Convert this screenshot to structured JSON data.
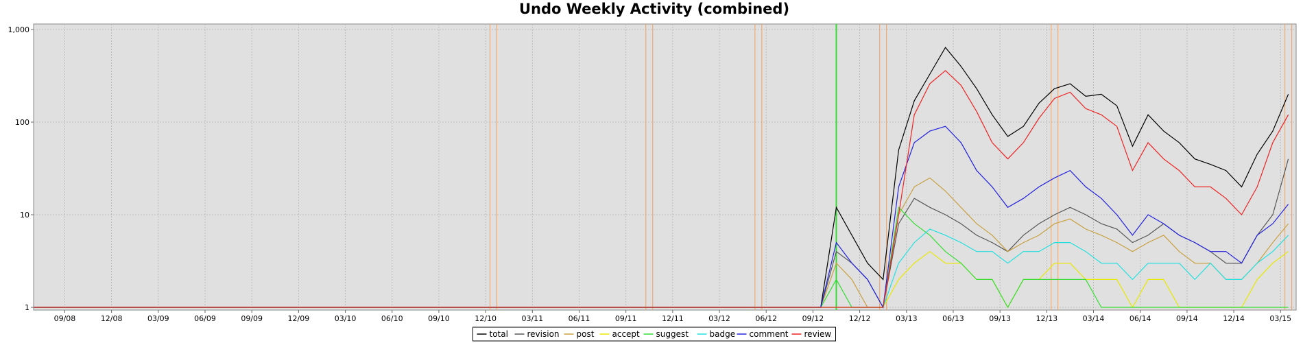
{
  "chart_data": {
    "type": "line",
    "title": "Undo Weekly Activity (combined)",
    "xlabel": "",
    "ylabel": "",
    "yscale": "log",
    "ylim": [
      1,
      1000
    ],
    "grid": true,
    "legend_position": "bottom",
    "y_ticks": [
      {
        "value": 1,
        "label": "1"
      },
      {
        "value": 10,
        "label": "10"
      },
      {
        "value": 100,
        "label": "100"
      },
      {
        "value": 1000,
        "label": "1,000"
      }
    ],
    "x_ticks": [
      "09/08",
      "12/08",
      "03/09",
      "06/09",
      "09/09",
      "12/09",
      "03/10",
      "06/10",
      "09/10",
      "12/10",
      "03/11",
      "06/11",
      "09/11",
      "12/11",
      "03/12",
      "06/12",
      "09/12",
      "12/12",
      "03/13",
      "06/13",
      "09/13",
      "12/13",
      "03/14",
      "06/14",
      "09/14",
      "12/14",
      "03/15"
    ],
    "x": [
      "2012-09",
      "2012-10",
      "2012-11",
      "2012-12",
      "2013-01",
      "2013-02",
      "2013-03",
      "2013-04",
      "2013-05",
      "2013-06",
      "2013-07",
      "2013-08",
      "2013-09",
      "2013-10",
      "2013-11",
      "2013-12",
      "2014-01",
      "2014-02",
      "2014-03",
      "2014-04",
      "2014-05",
      "2014-06",
      "2014-07",
      "2014-08",
      "2014-09",
      "2014-10",
      "2014-11",
      "2014-12",
      "2015-01",
      "2015-02",
      "2015-03"
    ],
    "series": [
      {
        "name": "total",
        "color": "#000000",
        "values": [
          1,
          12,
          6,
          3,
          2,
          50,
          170,
          330,
          640,
          400,
          230,
          120,
          70,
          90,
          160,
          230,
          260,
          190,
          200,
          150,
          55,
          120,
          80,
          60,
          40,
          35,
          30,
          20,
          45,
          80,
          200
        ]
      },
      {
        "name": "revision",
        "color": "#555555",
        "values": [
          1,
          4,
          3,
          2,
          1,
          8,
          15,
          12,
          10,
          8,
          6,
          5,
          4,
          6,
          8,
          10,
          12,
          10,
          8,
          7,
          5,
          6,
          8,
          6,
          5,
          4,
          3,
          3,
          6,
          10,
          40
        ]
      },
      {
        "name": "post",
        "color": "#c8a040",
        "values": [
          1,
          3,
          2,
          1,
          1,
          10,
          20,
          25,
          18,
          12,
          8,
          6,
          4,
          5,
          6,
          8,
          9,
          7,
          6,
          5,
          4,
          5,
          6,
          4,
          3,
          3,
          2,
          2,
          3,
          5,
          8
        ]
      },
      {
        "name": "accept",
        "color": "#e8e800",
        "values": [
          1,
          1,
          1,
          1,
          1,
          2,
          3,
          4,
          3,
          3,
          2,
          2,
          1,
          2,
          2,
          3,
          3,
          2,
          2,
          2,
          1,
          2,
          2,
          1,
          1,
          1,
          1,
          1,
          2,
          3,
          4
        ]
      },
      {
        "name": "suggest",
        "color": "#33dd33",
        "values": [
          1,
          2,
          1,
          1,
          1,
          12,
          8,
          6,
          4,
          3,
          2,
          2,
          1,
          2,
          2,
          2,
          2,
          2,
          1,
          1,
          1,
          1,
          1,
          1,
          1,
          1,
          1,
          1,
          1,
          1,
          1
        ]
      },
      {
        "name": "badge",
        "color": "#22e0e0",
        "values": [
          1,
          1,
          1,
          1,
          1,
          3,
          5,
          7,
          6,
          5,
          4,
          4,
          3,
          4,
          4,
          5,
          5,
          4,
          3,
          3,
          2,
          3,
          3,
          3,
          2,
          3,
          2,
          2,
          3,
          4,
          6
        ]
      },
      {
        "name": "comment",
        "color": "#2222dd",
        "values": [
          1,
          5,
          3,
          2,
          1,
          20,
          60,
          80,
          90,
          60,
          30,
          20,
          12,
          15,
          20,
          25,
          30,
          20,
          15,
          10,
          6,
          10,
          8,
          6,
          5,
          4,
          4,
          3,
          6,
          8,
          13
        ]
      },
      {
        "name": "review",
        "color": "#ee2222",
        "values": [
          1,
          1,
          1,
          1,
          1,
          10,
          120,
          260,
          360,
          250,
          130,
          60,
          40,
          60,
          110,
          180,
          210,
          140,
          120,
          90,
          30,
          60,
          40,
          30,
          20,
          20,
          15,
          10,
          20,
          60,
          120
        ]
      }
    ],
    "event_lines": [
      {
        "date": "2010-12",
        "color": "#f0a060"
      },
      {
        "date": "2011-10",
        "color": "#f0a060"
      },
      {
        "date": "2012-05",
        "color": "#f0a060"
      },
      {
        "date": "2012-10",
        "color": "#33dd33"
      },
      {
        "date": "2013-01",
        "color": "#f0a060"
      },
      {
        "date": "2013-12",
        "color": "#f0a060"
      },
      {
        "date": "2015-03",
        "color": "#f0a060"
      }
    ]
  }
}
